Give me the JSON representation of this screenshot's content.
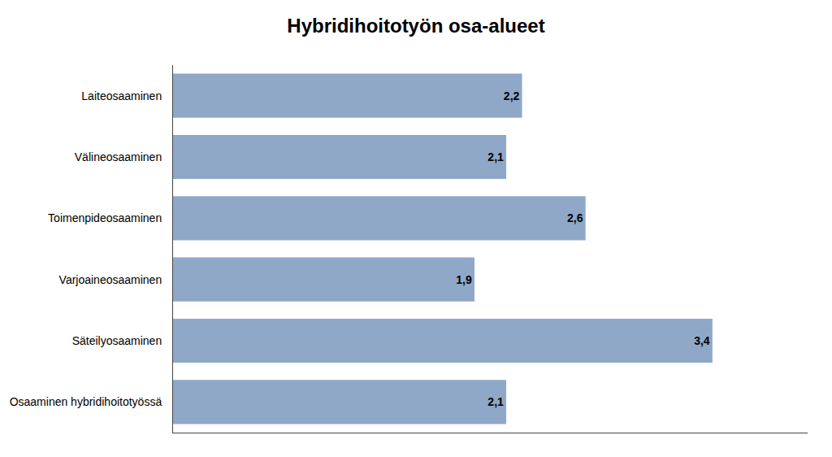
{
  "chart_data": {
    "type": "bar",
    "orientation": "horizontal",
    "title": "Hybridihoitotyön osa-alueet",
    "categories": [
      "Osaaminen hybridihoitotyössä",
      "Säteilyosaaminen",
      "Varjoaineosaaminen",
      "Toimenpideosaaminen",
      "Välineosaaminen",
      "Laiteosaaminen"
    ],
    "values": [
      2.1,
      3.4,
      1.9,
      2.6,
      2.1,
      2.2
    ],
    "value_labels": [
      "2,1",
      "3,4",
      "1,9",
      "2,6",
      "2,1",
      "2,2"
    ],
    "color": "#8FA8C8",
    "xlim": [
      0,
      4.0
    ],
    "xticks": [],
    "data_labels": true,
    "tick_labels": "y",
    "grid": false
  }
}
